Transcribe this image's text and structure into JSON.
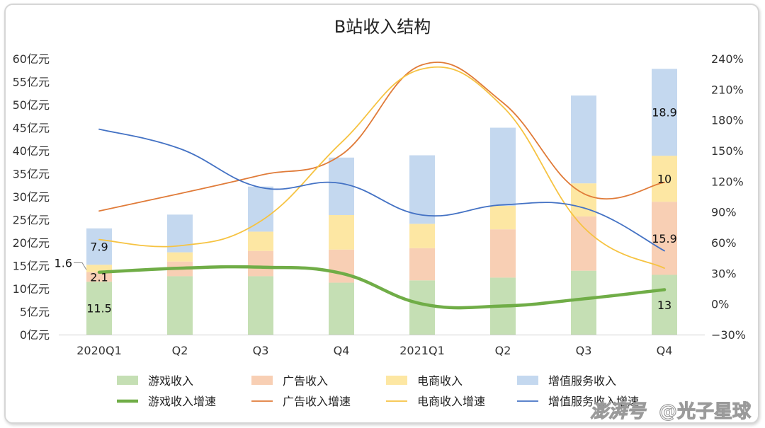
{
  "chart_data": {
    "type": "bar",
    "title": "B站收入结构",
    "categories": [
      "2020Q1",
      "Q2",
      "Q3",
      "Q4",
      "2021Q1",
      "Q2",
      "Q3",
      "Q4"
    ],
    "stacked": true,
    "y_left": {
      "ticks": [
        "0亿元",
        "5亿元",
        "10亿元",
        "15亿元",
        "20亿元",
        "25亿元",
        "30亿元",
        "35亿元",
        "40亿元",
        "45亿元",
        "50亿元",
        "55亿元",
        "60亿元"
      ],
      "range": [
        0,
        60
      ]
    },
    "y_right": {
      "ticks": [
        "−30%",
        "0%",
        "30%",
        "60%",
        "90%",
        "120%",
        "150%",
        "180%",
        "210%",
        "240%"
      ],
      "range": [
        -30,
        240
      ]
    },
    "series": [
      {
        "name": "游戏收入",
        "kind": "bar",
        "color": "#c5dfb4",
        "values": [
          11.5,
          12.7,
          12.7,
          11.3,
          11.8,
          12.4,
          13.9,
          13.0
        ]
      },
      {
        "name": "广告收入",
        "kind": "bar",
        "color": "#f8cfb4",
        "values": [
          2.1,
          3.2,
          5.5,
          7.2,
          7.0,
          10.5,
          11.8,
          15.9
        ]
      },
      {
        "name": "电商收入",
        "kind": "bar",
        "color": "#fde7a3",
        "values": [
          1.6,
          2.0,
          4.2,
          7.5,
          5.3,
          5.1,
          7.2,
          10.0
        ]
      },
      {
        "name": "增值服务收入",
        "kind": "bar",
        "color": "#c4d8ef",
        "values": [
          7.9,
          8.2,
          9.8,
          12.5,
          14.9,
          17.0,
          19.1,
          18.9
        ]
      },
      {
        "name": "游戏收入增速",
        "kind": "line",
        "axis": "right",
        "color": "#70ad47",
        "width": 4.5,
        "values": [
          31,
          35,
          36,
          30,
          0,
          -2,
          5,
          14
        ]
      },
      {
        "name": "广告收入增速",
        "kind": "line",
        "axis": "right",
        "color": "#e07b39",
        "width": 1.8,
        "values": [
          91,
          108,
          126,
          146,
          234,
          197,
          108,
          119
        ]
      },
      {
        "name": "电商收入增速",
        "kind": "line",
        "axis": "right",
        "color": "#f6c342",
        "width": 1.8,
        "values": [
          63,
          57,
          81,
          158,
          230,
          193,
          75,
          35
        ]
      },
      {
        "name": "增值服务收入增速",
        "kind": "line",
        "axis": "right",
        "color": "#4472c4",
        "width": 1.8,
        "values": [
          171,
          152,
          114,
          118,
          87,
          97,
          94,
          52
        ]
      }
    ],
    "data_labels": [
      {
        "category": 0,
        "series": "游戏收入",
        "text": "11.5"
      },
      {
        "category": 0,
        "series": "广告收入",
        "text": "2.1"
      },
      {
        "category": 0,
        "series": "电商收入",
        "text": "1.6"
      },
      {
        "category": 0,
        "series": "增值服务收入",
        "text": "7.9"
      },
      {
        "category": 7,
        "series": "游戏收入",
        "text": "13"
      },
      {
        "category": 7,
        "series": "广告收入",
        "text": "15.9"
      },
      {
        "category": 7,
        "series": "电商收入",
        "text": "10"
      },
      {
        "category": 7,
        "series": "增值服务收入",
        "text": "18.9"
      }
    ],
    "legend_position": "bottom",
    "grid": false
  },
  "watermark": {
    "site": "澎湃号",
    "author": "@光子星球"
  }
}
